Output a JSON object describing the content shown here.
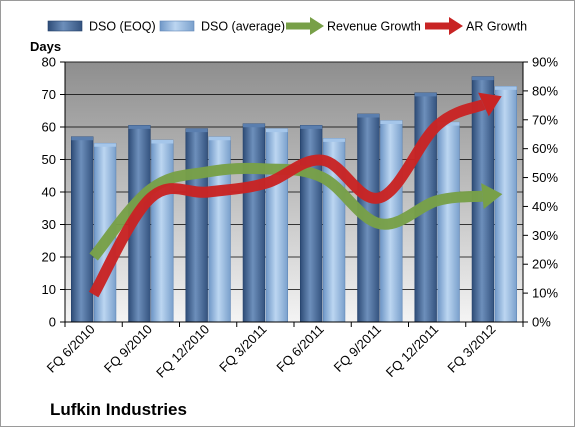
{
  "chart_data": {
    "type": "bar",
    "title": "Lufkin Industries",
    "ylabel": "Days",
    "ylim": [
      0,
      80
    ],
    "y_ticks": [
      0,
      10,
      20,
      30,
      40,
      50,
      60,
      70,
      80
    ],
    "y2lim": [
      0,
      90
    ],
    "y2_ticks": [
      "0%",
      "10%",
      "20%",
      "30%",
      "40%",
      "50%",
      "60%",
      "70%",
      "80%",
      "90%"
    ],
    "grid": true,
    "legend_position": "top",
    "categories": [
      "FQ 6/2010",
      "FQ 9/2010",
      "FQ 12/2010",
      "FQ 3/2011",
      "FQ 6/2011",
      "FQ 9/2011",
      "FQ 12/2011",
      "FQ 3/2012"
    ],
    "series": [
      {
        "name": "DSO (EOQ)",
        "type": "bar",
        "axis": "left",
        "color": "#4a6e9c",
        "values": [
          57,
          60.5,
          59.5,
          61,
          60.5,
          64,
          70.5,
          75.5
        ]
      },
      {
        "name": "DSO (average)",
        "type": "bar",
        "axis": "left",
        "color": "#8fb4dd",
        "values": [
          55,
          56,
          57,
          59.5,
          56.5,
          62,
          61.5,
          72.5
        ]
      },
      {
        "name": "Revenue Growth",
        "type": "arrow-line",
        "axis": "right",
        "unit": "%",
        "color": "#78a048",
        "values": [
          22.5,
          46,
          52,
          53,
          50,
          34,
          42,
          44
        ]
      },
      {
        "name": "AR Growth",
        "type": "arrow-line",
        "axis": "right",
        "unit": "%",
        "color": "#c82424",
        "values": [
          9.5,
          43,
          45,
          48,
          56,
          43,
          68,
          77
        ]
      }
    ]
  }
}
